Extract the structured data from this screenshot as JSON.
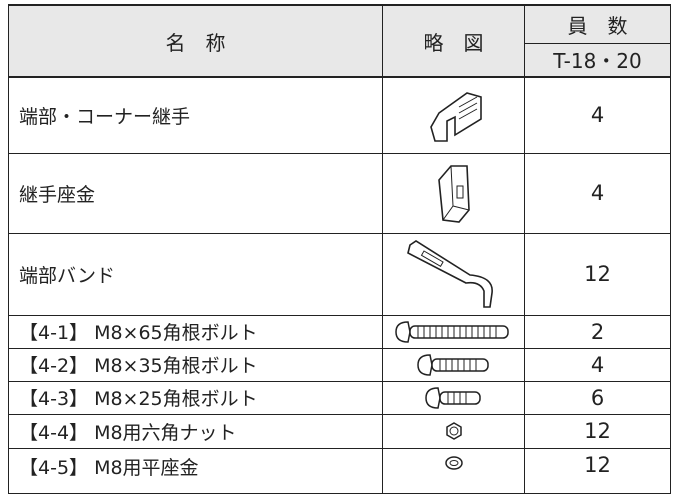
{
  "header": {
    "name": "名　称",
    "diagram": "略　図",
    "count": "員　数",
    "count_sub": "T-18・20"
  },
  "rows": [
    {
      "name": "端部・コーナー継手",
      "count": 4
    },
    {
      "name": "継手座金",
      "count": 4
    },
    {
      "name": "端部バンド",
      "count": 12
    },
    {
      "name": "【4-1】 M8×65角根ボルト",
      "count": 2
    },
    {
      "name": "【4-2】 M8×35角根ボルト",
      "count": 4
    },
    {
      "name": "【4-3】 M8×25角根ボルト",
      "count": 6
    },
    {
      "name": "【4-4】 M8用六角ナット",
      "count": 12
    },
    {
      "name": "【4-5】 M8用平座金",
      "count": 12
    }
  ]
}
